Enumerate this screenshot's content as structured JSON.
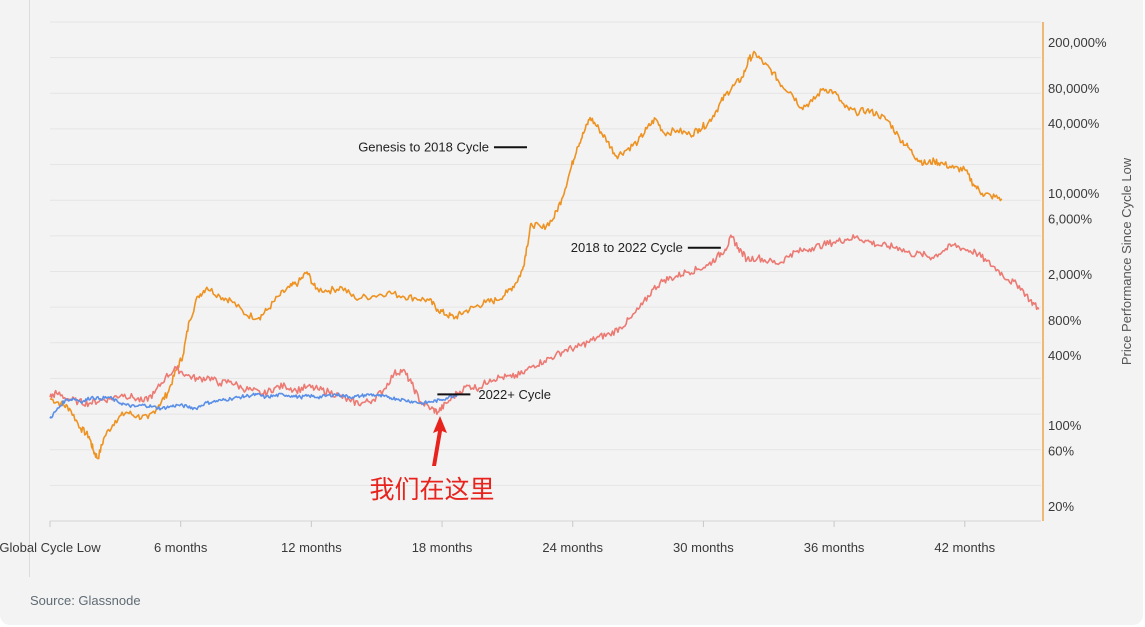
{
  "source": "Source: Glassnode",
  "annotation": {
    "text": "我们在这里",
    "color": "#e8231d"
  },
  "chart_data": {
    "type": "line",
    "title": "",
    "xlabel": "",
    "ylabel": "Price Performance Since Cycle Low",
    "y_scale": "log",
    "x_unit": "months since global cycle low",
    "xlim": [
      0,
      45.5
    ],
    "ylim": [
      15,
      300000
    ],
    "x_ticks": [
      {
        "value": 0,
        "label": "Global Cycle Low"
      },
      {
        "value": 6,
        "label": "6 months"
      },
      {
        "value": 12,
        "label": "12 months"
      },
      {
        "value": 18,
        "label": "18 months"
      },
      {
        "value": 24,
        "label": "24 months"
      },
      {
        "value": 30,
        "label": "30 months"
      },
      {
        "value": 36,
        "label": "36 months"
      },
      {
        "value": 42,
        "label": "42 months"
      }
    ],
    "y_ticks": [
      {
        "value": 20,
        "label": "20%"
      },
      {
        "value": 60,
        "label": "60%"
      },
      {
        "value": 100,
        "label": "100%"
      },
      {
        "value": 400,
        "label": "400%"
      },
      {
        "value": 800,
        "label": "800%"
      },
      {
        "value": 2000,
        "label": "2,000%"
      },
      {
        "value": 6000,
        "label": "6,000%"
      },
      {
        "value": 10000,
        "label": "10,000%"
      },
      {
        "value": 40000,
        "label": "40,000%"
      },
      {
        "value": 80000,
        "label": "80,000%"
      },
      {
        "value": 200000,
        "label": "200,000%"
      }
    ],
    "grid": true,
    "right_axis_color": "#f0a44a",
    "series": [
      {
        "name": "Genesis to 2018 Cycle",
        "color": "#ee9221",
        "label_at": [
          21.9,
          25000
        ],
        "points": [
          [
            0,
            170
          ],
          [
            0.5,
            155
          ],
          [
            0.9,
            140
          ],
          [
            1.4,
            95
          ],
          [
            1.8,
            80
          ],
          [
            2.0,
            60
          ],
          [
            2.2,
            52
          ],
          [
            2.5,
            80
          ],
          [
            3,
            110
          ],
          [
            3.5,
            130
          ],
          [
            4,
            120
          ],
          [
            4.5,
            115
          ],
          [
            5,
            150
          ],
          [
            5.4,
            190
          ],
          [
            5.8,
            300
          ],
          [
            6.1,
            400
          ],
          [
            6.4,
            800
          ],
          [
            6.8,
            1300
          ],
          [
            7.2,
            1550
          ],
          [
            7.8,
            1300
          ],
          [
            8.3,
            1200
          ],
          [
            9,
            900
          ],
          [
            9.6,
            850
          ],
          [
            10,
            1000
          ],
          [
            10.5,
            1300
          ],
          [
            11,
            1550
          ],
          [
            11.4,
            1700
          ],
          [
            11.8,
            2100
          ],
          [
            12.2,
            1500
          ],
          [
            12.8,
            1450
          ],
          [
            13.4,
            1550
          ],
          [
            14,
            1250
          ],
          [
            14.8,
            1300
          ],
          [
            15.5,
            1400
          ],
          [
            16.2,
            1300
          ],
          [
            16.8,
            1250
          ],
          [
            17.4,
            1200
          ],
          [
            17.8,
            1000
          ],
          [
            18.2,
            900
          ],
          [
            18.6,
            850
          ],
          [
            19,
            950
          ],
          [
            19.5,
            1050
          ],
          [
            20,
            1150
          ],
          [
            20.5,
            1200
          ],
          [
            21,
            1400
          ],
          [
            21.4,
            1700
          ],
          [
            21.7,
            2200
          ],
          [
            21.9,
            3500
          ],
          [
            22.1,
            5500
          ],
          [
            22.6,
            5000
          ],
          [
            23.1,
            6000
          ],
          [
            23.5,
            9000
          ],
          [
            23.9,
            16000
          ],
          [
            24.2,
            25000
          ],
          [
            24.5,
            33000
          ],
          [
            24.8,
            45000
          ],
          [
            25.2,
            36000
          ],
          [
            25.6,
            28000
          ],
          [
            26,
            21000
          ],
          [
            26.5,
            24000
          ],
          [
            27,
            28000
          ],
          [
            27.4,
            36000
          ],
          [
            27.8,
            44000
          ],
          [
            28.2,
            33000
          ],
          [
            28.8,
            35000
          ],
          [
            29.4,
            32000
          ],
          [
            29.8,
            36000
          ],
          [
            30.2,
            40000
          ],
          [
            30.6,
            52000
          ],
          [
            31,
            70000
          ],
          [
            31.4,
            85000
          ],
          [
            31.8,
            100000
          ],
          [
            32.1,
            145000
          ],
          [
            32.4,
            160000
          ],
          [
            32.8,
            130000
          ],
          [
            33.2,
            110000
          ],
          [
            33.6,
            85000
          ],
          [
            34,
            75000
          ],
          [
            34.5,
            55000
          ],
          [
            35,
            62000
          ],
          [
            35.5,
            80000
          ],
          [
            36,
            75000
          ],
          [
            36.5,
            55000
          ],
          [
            37,
            50000
          ],
          [
            37.5,
            52000
          ],
          [
            38,
            48000
          ],
          [
            38.5,
            42000
          ],
          [
            39,
            30000
          ],
          [
            39.4,
            25000
          ],
          [
            39.8,
            20000
          ],
          [
            40.2,
            18000
          ],
          [
            40.6,
            19000
          ],
          [
            41,
            18000
          ],
          [
            41.5,
            16500
          ],
          [
            42,
            16000
          ],
          [
            42.4,
            12000
          ],
          [
            42.8,
            10000
          ],
          [
            43.2,
            9500
          ],
          [
            43.7,
            9000
          ]
        ]
      },
      {
        "name": "2018 to 2022 Cycle",
        "color": "#ec7a73",
        "label_at": [
          30.8,
          3400
        ],
        "points": [
          [
            0,
            175
          ],
          [
            0.3,
            190
          ],
          [
            0.8,
            170
          ],
          [
            1.3,
            160
          ],
          [
            1.8,
            155
          ],
          [
            2.3,
            165
          ],
          [
            2.8,
            170
          ],
          [
            3.3,
            185
          ],
          [
            3.8,
            175
          ],
          [
            4.3,
            160
          ],
          [
            4.8,
            190
          ],
          [
            5.3,
            260
          ],
          [
            5.8,
            310
          ],
          [
            6.3,
            270
          ],
          [
            6.8,
            250
          ],
          [
            7.3,
            260
          ],
          [
            7.8,
            230
          ],
          [
            8.3,
            240
          ],
          [
            8.8,
            210
          ],
          [
            9.3,
            200
          ],
          [
            9.8,
            185
          ],
          [
            10.3,
            210
          ],
          [
            10.8,
            220
          ],
          [
            11.3,
            200
          ],
          [
            11.8,
            215
          ],
          [
            12.3,
            205
          ],
          [
            12.8,
            195
          ],
          [
            13.3,
            180
          ],
          [
            13.8,
            160
          ],
          [
            14.3,
            155
          ],
          [
            14.8,
            165
          ],
          [
            15.3,
            200
          ],
          [
            15.8,
            280
          ],
          [
            16.2,
            300
          ],
          [
            16.6,
            230
          ],
          [
            17,
            160
          ],
          [
            17.5,
            140
          ],
          [
            17.8,
            130
          ],
          [
            18.2,
            155
          ],
          [
            18.7,
            190
          ],
          [
            19.2,
            220
          ],
          [
            19.7,
            210
          ],
          [
            20.2,
            250
          ],
          [
            20.7,
            260
          ],
          [
            21.2,
            260
          ],
          [
            21.7,
            280
          ],
          [
            22.2,
            330
          ],
          [
            22.7,
            360
          ],
          [
            23.2,
            400
          ],
          [
            23.7,
            450
          ],
          [
            24.2,
            470
          ],
          [
            24.7,
            520
          ],
          [
            25.2,
            580
          ],
          [
            25.7,
            610
          ],
          [
            26.2,
            700
          ],
          [
            26.7,
            850
          ],
          [
            27.2,
            1100
          ],
          [
            27.7,
            1500
          ],
          [
            28.2,
            1800
          ],
          [
            28.7,
            1900
          ],
          [
            29.2,
            2100
          ],
          [
            29.7,
            2200
          ],
          [
            30.2,
            2400
          ],
          [
            30.6,
            2800
          ],
          [
            31,
            3300
          ],
          [
            31.3,
            4200
          ],
          [
            31.6,
            3400
          ],
          [
            32,
            2700
          ],
          [
            32.5,
            2800
          ],
          [
            33,
            2600
          ],
          [
            33.5,
            2500
          ],
          [
            34,
            3000
          ],
          [
            34.5,
            3200
          ],
          [
            35,
            3400
          ],
          [
            35.5,
            3600
          ],
          [
            36,
            3800
          ],
          [
            36.5,
            4000
          ],
          [
            37,
            4200
          ],
          [
            37.5,
            3900
          ],
          [
            38,
            3600
          ],
          [
            38.5,
            3500
          ],
          [
            39,
            3400
          ],
          [
            39.5,
            3000
          ],
          [
            40,
            3000
          ],
          [
            40.5,
            2800
          ],
          [
            41,
            3200
          ],
          [
            41.5,
            3600
          ],
          [
            42,
            3300
          ],
          [
            42.5,
            3100
          ],
          [
            43,
            2600
          ],
          [
            43.5,
            2200
          ],
          [
            44,
            1800
          ],
          [
            44.5,
            1600
          ],
          [
            45,
            1200
          ],
          [
            45.4,
            1000
          ]
        ]
      },
      {
        "name": "2022+ Cycle",
        "color": "#5a8fe8",
        "label_at": [
          19.3,
          185
        ],
        "points": [
          [
            0,
            115
          ],
          [
            0.3,
            135
          ],
          [
            0.7,
            165
          ],
          [
            1.1,
            170
          ],
          [
            1.5,
            160
          ],
          [
            1.9,
            175
          ],
          [
            2.3,
            170
          ],
          [
            2.7,
            175
          ],
          [
            3.1,
            160
          ],
          [
            3.5,
            150
          ],
          [
            3.9,
            145
          ],
          [
            4.3,
            150
          ],
          [
            4.7,
            145
          ],
          [
            5.1,
            140
          ],
          [
            5.5,
            145
          ],
          [
            5.9,
            150
          ],
          [
            6.3,
            145
          ],
          [
            6.7,
            140
          ],
          [
            7.1,
            155
          ],
          [
            7.5,
            160
          ],
          [
            7.9,
            165
          ],
          [
            8.3,
            170
          ],
          [
            8.7,
            175
          ],
          [
            9.1,
            180
          ],
          [
            9.5,
            185
          ],
          [
            9.9,
            175
          ],
          [
            10.3,
            180
          ],
          [
            10.7,
            185
          ],
          [
            11.1,
            180
          ],
          [
            11.5,
            175
          ],
          [
            11.9,
            180
          ],
          [
            12.3,
            175
          ],
          [
            12.7,
            180
          ],
          [
            13.1,
            185
          ],
          [
            13.5,
            180
          ],
          [
            13.9,
            175
          ],
          [
            14.3,
            180
          ],
          [
            14.7,
            185
          ],
          [
            15.1,
            180
          ],
          [
            15.5,
            175
          ],
          [
            15.9,
            170
          ],
          [
            16.3,
            165
          ],
          [
            16.7,
            160
          ],
          [
            17.1,
            155
          ],
          [
            17.5,
            160
          ],
          [
            17.9,
            165
          ],
          [
            18.3,
            175
          ],
          [
            18.7,
            185
          ]
        ]
      }
    ]
  }
}
